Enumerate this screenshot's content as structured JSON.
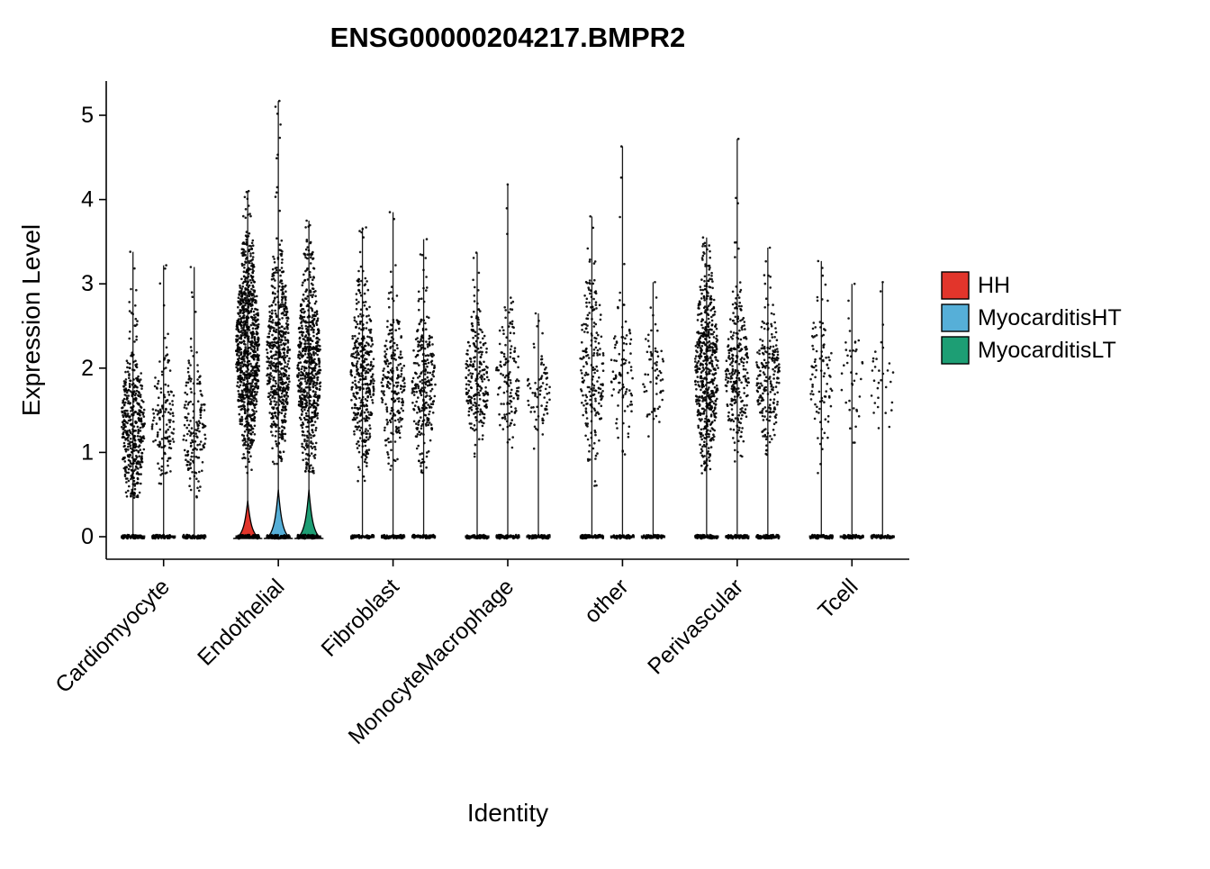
{
  "title": "ENSG00000204217.BMPR2",
  "axes": {
    "x_label": "Identity",
    "y_label": "Expression Level",
    "y_ticks": [
      0,
      1,
      2,
      3,
      4,
      5
    ]
  },
  "legend": {
    "position": "right",
    "items": [
      {
        "label": "HH",
        "color": "#E2352B"
      },
      {
        "label": "MyocarditisHT",
        "color": "#56AFD8"
      },
      {
        "label": "MyocarditisLT",
        "color": "#1D9E74"
      }
    ]
  },
  "chart_data": {
    "type": "scatter",
    "style": "violin_jitter",
    "title": "ENSG00000204217.BMPR2",
    "xlabel": "Identity",
    "ylabel": "Expression Level",
    "ylim": [
      0,
      5.3
    ],
    "grid": false,
    "categories": [
      "Cardiomyocyte",
      "Endothelial",
      "Fibroblast",
      "MonocyteMacrophage",
      "other",
      "Perivascular",
      "Tcell"
    ],
    "groups": [
      "HH",
      "MyocarditisHT",
      "MyocarditisLT"
    ],
    "violins": [
      {
        "category": "Cardiomyocyte",
        "group": "HH",
        "max": 3.38,
        "peak": 1.3,
        "bulk": [
          0.6,
          2.5
        ],
        "n": 420,
        "zeros": 70,
        "base_violin_height": 0
      },
      {
        "category": "Cardiomyocyte",
        "group": "MyocarditisHT",
        "max": 3.22,
        "peak": 1.4,
        "bulk": [
          0.7,
          2.3
        ],
        "n": 130,
        "zeros": 55,
        "base_violin_height": 0
      },
      {
        "category": "Cardiomyocyte",
        "group": "MyocarditisLT",
        "max": 3.2,
        "peak": 1.3,
        "bulk": [
          0.7,
          2.2
        ],
        "n": 160,
        "zeros": 55,
        "base_violin_height": 0
      },
      {
        "category": "Endothelial",
        "group": "HH",
        "max": 4.1,
        "peak": 2.2,
        "bulk": [
          1.0,
          3.4
        ],
        "n": 850,
        "zeros": 80,
        "base_violin_height": 0.45
      },
      {
        "category": "Endothelial",
        "group": "MyocarditisHT",
        "max": 5.17,
        "peak": 2.1,
        "bulk": [
          1.0,
          3.3
        ],
        "n": 550,
        "zeros": 80,
        "base_violin_height": 0.58
      },
      {
        "category": "Endothelial",
        "group": "MyocarditisLT",
        "max": 3.75,
        "peak": 2.0,
        "bulk": [
          1.0,
          3.3
        ],
        "n": 600,
        "zeros": 80,
        "base_violin_height": 0.58
      },
      {
        "category": "Fibroblast",
        "group": "HH",
        "max": 3.67,
        "peak": 1.9,
        "bulk": [
          0.9,
          3.0
        ],
        "n": 380,
        "zeros": 65,
        "base_violin_height": 0
      },
      {
        "category": "Fibroblast",
        "group": "MyocarditisHT",
        "max": 3.85,
        "peak": 1.8,
        "bulk": [
          1.0,
          2.8
        ],
        "n": 220,
        "zeros": 60,
        "base_violin_height": 0
      },
      {
        "category": "Fibroblast",
        "group": "MyocarditisLT",
        "max": 3.53,
        "peak": 1.8,
        "bulk": [
          1.0,
          2.9
        ],
        "n": 260,
        "zeros": 60,
        "base_violin_height": 0
      },
      {
        "category": "MonocyteMacrophage",
        "group": "HH",
        "max": 3.37,
        "peak": 1.9,
        "bulk": [
          1.2,
          2.7
        ],
        "n": 220,
        "zeros": 60,
        "base_violin_height": 0
      },
      {
        "category": "MonocyteMacrophage",
        "group": "MyocarditisHT",
        "max": 4.18,
        "peak": 1.9,
        "bulk": [
          1.1,
          2.7
        ],
        "n": 130,
        "zeros": 55,
        "base_violin_height": 0
      },
      {
        "category": "MonocyteMacrophage",
        "group": "MyocarditisLT",
        "max": 2.65,
        "peak": 1.7,
        "bulk": [
          1.1,
          2.2
        ],
        "n": 70,
        "zeros": 50,
        "base_violin_height": 0
      },
      {
        "category": "other",
        "group": "HH",
        "max": 3.8,
        "peak": 2.0,
        "bulk": [
          0.8,
          3.1
        ],
        "n": 200,
        "zeros": 60,
        "base_violin_height": 0
      },
      {
        "category": "other",
        "group": "MyocarditisHT",
        "max": 4.63,
        "peak": 1.9,
        "bulk": [
          1.2,
          2.8
        ],
        "n": 90,
        "zeros": 50,
        "base_violin_height": 0
      },
      {
        "category": "other",
        "group": "MyocarditisLT",
        "max": 3.02,
        "peak": 1.9,
        "bulk": [
          1.3,
          2.5
        ],
        "n": 60,
        "zeros": 50,
        "base_violin_height": 0
      },
      {
        "category": "Perivascular",
        "group": "HH",
        "max": 3.55,
        "peak": 2.0,
        "bulk": [
          1.0,
          3.2
        ],
        "n": 520,
        "zeros": 70,
        "base_violin_height": 0
      },
      {
        "category": "Perivascular",
        "group": "MyocarditisHT",
        "max": 4.72,
        "peak": 1.9,
        "bulk": [
          1.1,
          2.9
        ],
        "n": 260,
        "zeros": 60,
        "base_violin_height": 0
      },
      {
        "category": "Perivascular",
        "group": "MyocarditisLT",
        "max": 3.43,
        "peak": 1.9,
        "bulk": [
          1.2,
          2.9
        ],
        "n": 210,
        "zeros": 60,
        "base_violin_height": 0
      },
      {
        "category": "Tcell",
        "group": "HH",
        "max": 3.27,
        "peak": 1.9,
        "bulk": [
          0.9,
          2.9
        ],
        "n": 90,
        "zeros": 55,
        "base_violin_height": 0
      },
      {
        "category": "Tcell",
        "group": "MyocarditisHT",
        "max": 3.0,
        "peak": 1.9,
        "bulk": [
          1.2,
          2.4
        ],
        "n": 35,
        "zeros": 45,
        "base_violin_height": 0
      },
      {
        "category": "Tcell",
        "group": "MyocarditisLT",
        "max": 3.02,
        "peak": 1.8,
        "bulk": [
          1.0,
          2.2
        ],
        "n": 28,
        "zeros": 45,
        "base_violin_height": 0
      }
    ]
  }
}
